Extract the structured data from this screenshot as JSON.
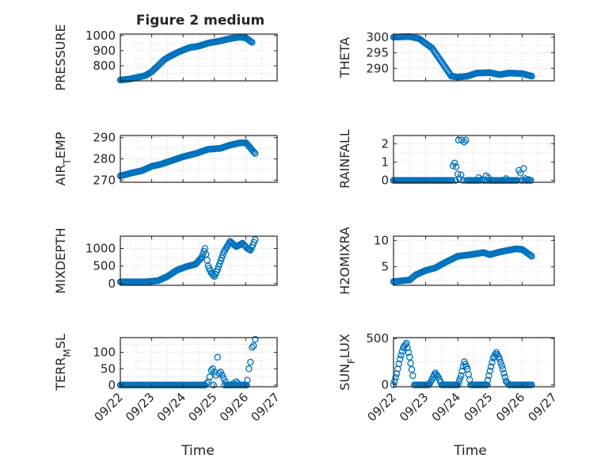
{
  "figure_title": "Figure 2 medium",
  "chart_data": [
    {
      "type": "scatter",
      "id": "pressure",
      "ylabel": "PRESSURE",
      "title": "Figure 2 medium",
      "xlim": [
        0,
        5
      ],
      "ylim": [
        700,
        1010
      ],
      "yticks": [
        800,
        900,
        1000
      ],
      "ytick_labels": [
        "800",
        "900",
        "1000"
      ],
      "xticks": [
        0,
        1,
        2,
        3,
        4,
        5
      ],
      "xtick_labels": [
        "09/22",
        "09/23",
        "09/24",
        "09/25",
        "09/26",
        "09/27"
      ],
      "show_xtick_labels": false,
      "keypoints": [
        [
          0.0,
          705
        ],
        [
          0.3,
          712
        ],
        [
          0.6,
          725
        ],
        [
          0.8,
          735
        ],
        [
          1.0,
          760
        ],
        [
          1.2,
          800
        ],
        [
          1.4,
          840
        ],
        [
          1.6,
          865
        ],
        [
          1.9,
          895
        ],
        [
          2.2,
          920
        ],
        [
          2.5,
          930
        ],
        [
          2.8,
          950
        ],
        [
          3.2,
          965
        ],
        [
          3.5,
          980
        ],
        [
          3.8,
          990
        ],
        [
          4.0,
          985
        ],
        [
          4.2,
          955
        ]
      ]
    },
    {
      "type": "scatter",
      "id": "theta",
      "ylabel": "THETA",
      "xlim": [
        0,
        5
      ],
      "ylim": [
        286,
        301
      ],
      "yticks": [
        290,
        295,
        300
      ],
      "ytick_labels": [
        "290",
        "295",
        "300"
      ],
      "xticks": [
        0,
        1,
        2,
        3,
        4,
        5
      ],
      "xtick_labels": [
        "09/22",
        "09/23",
        "09/24",
        "09/25",
        "09/26",
        "09/27"
      ],
      "show_xtick_labels": false,
      "keypoints": [
        [
          0.0,
          300
        ],
        [
          0.5,
          300.2
        ],
        [
          0.8,
          299.5
        ],
        [
          1.2,
          296.5
        ],
        [
          1.5,
          292
        ],
        [
          1.8,
          287.5
        ],
        [
          2.0,
          287.2
        ],
        [
          2.3,
          287.5
        ],
        [
          2.6,
          288.5
        ],
        [
          3.0,
          288.6
        ],
        [
          3.3,
          288
        ],
        [
          3.6,
          288.5
        ],
        [
          4.0,
          288.3
        ],
        [
          4.3,
          287.5
        ]
      ]
    },
    {
      "type": "scatter",
      "id": "air-temp",
      "ylabel": "AIR",
      "ylabel_sub": "T",
      "ylabel_rest": "EMP",
      "xlim": [
        0,
        5
      ],
      "ylim": [
        269,
        291
      ],
      "yticks": [
        270,
        280,
        290
      ],
      "ytick_labels": [
        "270",
        "280",
        "290"
      ],
      "xticks": [
        0,
        1,
        2,
        3,
        4,
        5
      ],
      "xtick_labels": [
        "09/22",
        "09/23",
        "09/24",
        "09/25",
        "09/26",
        "09/27"
      ],
      "show_xtick_labels": false,
      "keypoints": [
        [
          0.0,
          272
        ],
        [
          0.4,
          273.5
        ],
        [
          0.7,
          274.5
        ],
        [
          1.0,
          276.5
        ],
        [
          1.3,
          277.5
        ],
        [
          1.6,
          279
        ],
        [
          2.0,
          281
        ],
        [
          2.4,
          282.5
        ],
        [
          2.8,
          284.5
        ],
        [
          3.2,
          285
        ],
        [
          3.5,
          286.5
        ],
        [
          3.8,
          287.5
        ],
        [
          4.0,
          287.6
        ],
        [
          4.1,
          286
        ],
        [
          4.3,
          282.5
        ]
      ]
    },
    {
      "type": "scatter",
      "id": "rainfall",
      "ylabel": "RAINFALL",
      "xlim": [
        0,
        5
      ],
      "ylim": [
        -0.1,
        2.45
      ],
      "yticks": [
        0,
        1,
        2
      ],
      "ytick_labels": [
        "0",
        "1",
        "2"
      ],
      "xticks": [
        0,
        1,
        2,
        3,
        4,
        5
      ],
      "xtick_labels": [
        "09/22",
        "09/23",
        "09/24",
        "09/25",
        "09/26",
        "09/27"
      ],
      "show_xtick_labels": false,
      "baseline": 0,
      "spikes": [
        [
          1.85,
          0.8
        ],
        [
          1.9,
          0.95
        ],
        [
          1.95,
          0.75
        ],
        [
          2.0,
          0.35
        ],
        [
          2.02,
          2.2
        ],
        [
          2.05,
          0.1
        ],
        [
          2.1,
          0.3
        ],
        [
          2.12,
          2.2
        ],
        [
          2.2,
          2.1
        ],
        [
          2.25,
          2.2
        ],
        [
          2.65,
          0.15
        ],
        [
          2.75,
          0.05
        ],
        [
          2.88,
          0.25
        ],
        [
          2.95,
          0.15
        ],
        [
          3.5,
          0.1
        ],
        [
          3.9,
          0.55
        ],
        [
          3.95,
          0.4
        ],
        [
          4.05,
          0.65
        ],
        [
          4.1,
          0.1
        ],
        [
          4.2,
          0.05
        ]
      ]
    },
    {
      "type": "scatter",
      "id": "mixdepth",
      "ylabel": "MIXDEPTH",
      "xlim": [
        0,
        5
      ],
      "ylim": [
        -50,
        1350
      ],
      "yticks": [
        0,
        500,
        1000
      ],
      "ytick_labels": [
        "0",
        "500",
        "1000"
      ],
      "xticks": [
        0,
        1,
        2,
        3,
        4,
        5
      ],
      "xtick_labels": [
        "09/22",
        "09/23",
        "09/24",
        "09/25",
        "09/26",
        "09/27"
      ],
      "show_xtick_labels": false,
      "keypoints": [
        [
          0.0,
          50
        ],
        [
          0.8,
          50
        ],
        [
          1.2,
          80
        ],
        [
          1.5,
          200
        ],
        [
          1.8,
          380
        ],
        [
          2.1,
          480
        ],
        [
          2.4,
          550
        ],
        [
          2.6,
          750
        ],
        [
          2.7,
          1000
        ],
        [
          2.8,
          500
        ],
        [
          2.9,
          300
        ],
        [
          3.0,
          200
        ],
        [
          3.1,
          400
        ],
        [
          3.3,
          900
        ],
        [
          3.5,
          1200
        ],
        [
          3.7,
          1050
        ],
        [
          3.9,
          1150
        ],
        [
          4.05,
          1000
        ],
        [
          4.15,
          950
        ],
        [
          4.3,
          1250
        ]
      ]
    },
    {
      "type": "scatter",
      "id": "h2omixra",
      "ylabel": "H2OMIXRA",
      "xlim": [
        0,
        5
      ],
      "ylim": [
        1.5,
        10.8
      ],
      "yticks": [
        5,
        10
      ],
      "ytick_labels": [
        "5",
        "10"
      ],
      "xticks": [
        0,
        1,
        2,
        3,
        4,
        5
      ],
      "xtick_labels": [
        "09/22",
        "09/23",
        "09/24",
        "09/25",
        "09/26",
        "09/27"
      ],
      "show_xtick_labels": false,
      "keypoints": [
        [
          0.0,
          2.2
        ],
        [
          0.5,
          2.5
        ],
        [
          0.7,
          3.5
        ],
        [
          1.0,
          4.3
        ],
        [
          1.3,
          4.8
        ],
        [
          1.6,
          5.8
        ],
        [
          2.0,
          7.0
        ],
        [
          2.4,
          7.3
        ],
        [
          2.8,
          7.7
        ],
        [
          3.0,
          7.3
        ],
        [
          3.3,
          7.8
        ],
        [
          3.8,
          8.4
        ],
        [
          4.0,
          8.3
        ],
        [
          4.3,
          7.0
        ]
      ]
    },
    {
      "type": "scatter",
      "id": "terrmsl",
      "ylabel": "TERR",
      "ylabel_sub": "M",
      "ylabel_rest": "SL",
      "xlim": [
        0,
        5
      ],
      "ylim": [
        -5,
        145
      ],
      "yticks": [
        0,
        50,
        100
      ],
      "ytick_labels": [
        "0",
        "50",
        "100"
      ],
      "xticks": [
        0,
        1,
        2,
        3,
        4,
        5
      ],
      "xtick_labels": [
        "09/22",
        "09/23",
        "09/24",
        "09/25",
        "09/26",
        "09/27"
      ],
      "show_xtick_labels": true,
      "baseline": 0,
      "spikes": [
        [
          2.75,
          5
        ],
        [
          2.8,
          10
        ],
        [
          2.85,
          25
        ],
        [
          2.9,
          45
        ],
        [
          2.95,
          50
        ],
        [
          3.0,
          40
        ],
        [
          3.05,
          30
        ],
        [
          3.1,
          85
        ],
        [
          3.15,
          35
        ],
        [
          3.2,
          40
        ],
        [
          3.25,
          30
        ],
        [
          3.3,
          20
        ],
        [
          3.35,
          10
        ],
        [
          3.6,
          5
        ],
        [
          3.7,
          10
        ],
        [
          3.75,
          5
        ],
        [
          4.05,
          15
        ],
        [
          4.1,
          50
        ],
        [
          4.15,
          70
        ],
        [
          4.2,
          115
        ],
        [
          4.25,
          120
        ],
        [
          4.3,
          140
        ]
      ]
    },
    {
      "type": "scatter",
      "id": "sunflux",
      "ylabel": "SUN",
      "ylabel_sub": "F",
      "ylabel_rest": "LUX",
      "xlim": [
        0,
        5
      ],
      "ylim": [
        -20,
        510
      ],
      "yticks": [
        0,
        500
      ],
      "ytick_labels": [
        "0",
        "500"
      ],
      "xticks": [
        0,
        1,
        2,
        3,
        4,
        5
      ],
      "xtick_labels": [
        "09/22",
        "09/23",
        "09/24",
        "09/25",
        "09/26",
        "09/27"
      ],
      "show_xtick_labels": true,
      "keypoints": [
        [
          0.0,
          0
        ],
        [
          0.1,
          120
        ],
        [
          0.2,
          280
        ],
        [
          0.3,
          400
        ],
        [
          0.4,
          450
        ],
        [
          0.5,
          300
        ],
        [
          0.6,
          100
        ],
        [
          0.65,
          0
        ],
        [
          1.1,
          0
        ],
        [
          1.2,
          60
        ],
        [
          1.3,
          130
        ],
        [
          1.4,
          80
        ],
        [
          1.5,
          0
        ],
        [
          2.0,
          0
        ],
        [
          2.1,
          100
        ],
        [
          2.2,
          250
        ],
        [
          2.3,
          170
        ],
        [
          2.4,
          0
        ],
        [
          2.9,
          0
        ],
        [
          3.0,
          150
        ],
        [
          3.1,
          290
        ],
        [
          3.2,
          350
        ],
        [
          3.3,
          280
        ],
        [
          3.4,
          170
        ],
        [
          3.5,
          40
        ],
        [
          3.6,
          0
        ],
        [
          4.3,
          0
        ]
      ]
    }
  ],
  "x_axis_label": "Time"
}
